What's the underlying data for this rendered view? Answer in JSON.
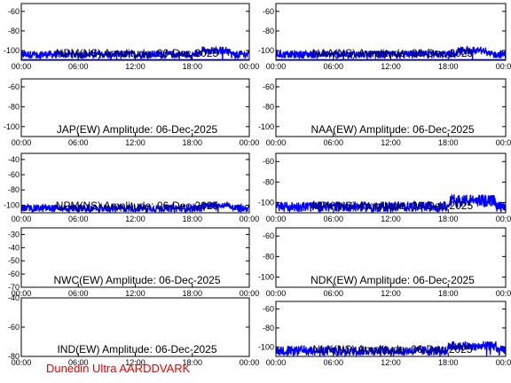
{
  "footer": "Dunedin Ultra AARDDVARK",
  "chart_data": [
    {
      "type": "line",
      "title": "NPM(NS) Amplitude: 06-Dec-2025",
      "ylim": [
        -110,
        -52
      ],
      "yticks": [
        -60,
        -80,
        -100
      ],
      "xticks": [
        "00:00",
        "06:00",
        "12:00",
        "18:00",
        "00:00"
      ],
      "x": [
        0,
        24
      ],
      "series": [
        {
          "name": "",
          "baseline": -104,
          "spread": 4,
          "spike": [
            19,
            22,
            -96
          ]
        }
      ],
      "color": "#0000ff"
    },
    {
      "type": "line",
      "title": "NAA(NS) Amplitude: 06-Dec-2025",
      "ylim": [
        -110,
        -52
      ],
      "yticks": [
        -60,
        -80,
        -100
      ],
      "xticks": [
        "00:00",
        "06:00",
        "12:00",
        "18:00",
        "00:00"
      ],
      "x": [
        0,
        24
      ],
      "series": [
        {
          "name": "",
          "baseline": -104,
          "spread": 4,
          "spike": [
            19,
            22,
            -96
          ]
        }
      ],
      "color": "#0000ff"
    },
    {
      "type": "line",
      "title": "JAP(EW) Amplitude: 06-Dec-2025",
      "ylim": [
        -110,
        -52
      ],
      "yticks": [
        -60,
        -80,
        -100
      ],
      "xticks": [
        "00:00",
        "06:00",
        "12:00",
        "18:00",
        "00:00"
      ],
      "x": [
        0,
        24
      ],
      "series": [],
      "color": "#0000ff"
    },
    {
      "type": "line",
      "title": "NAA(EW) Amplitude: 06-Dec-2025",
      "ylim": [
        -110,
        -52
      ],
      "yticks": [
        -60,
        -80,
        -100
      ],
      "xticks": [
        "00:00",
        "06:00",
        "12:00",
        "18:00",
        "00:00"
      ],
      "x": [
        0,
        24
      ],
      "series": [],
      "color": "#0000ff"
    },
    {
      "type": "line",
      "title": "NPM(NS) Amplitude: 06-Dec-2025",
      "ylim": [
        -110,
        -32
      ],
      "yticks": [
        -40,
        -60,
        -80,
        -100
      ],
      "xticks": [
        "00:00",
        "06:00",
        "12:00",
        "18:00",
        "00:00"
      ],
      "x": [
        0,
        24
      ],
      "series": [
        {
          "name": "",
          "baseline": -104,
          "spread": 5,
          "spike": [
            19,
            22,
            -96
          ]
        }
      ],
      "color": "#0000ff"
    },
    {
      "type": "line",
      "title": "NPK(NS) Amplitude: 06-Dec-2025",
      "ylim": [
        -110,
        -52
      ],
      "yticks": [
        -60,
        -80,
        -100
      ],
      "xticks": [
        "00:00",
        "06:00",
        "12:00",
        "18:00",
        "00:00"
      ],
      "x": [
        0,
        24
      ],
      "series": [
        {
          "name": "",
          "baseline": -104,
          "spread": 5,
          "spike": [
            18,
            23,
            -92
          ]
        }
      ],
      "color": "#0000ff"
    },
    {
      "type": "line",
      "title": "NWC(EW) Amplitude: 06-Dec-2025",
      "ylim": [
        -70,
        -25
      ],
      "yticks": [
        -30,
        -40,
        -50,
        -60,
        -70
      ],
      "xticks": [
        "00:00",
        "06:00",
        "12:00",
        "18:00",
        "00:00"
      ],
      "x": [
        0,
        24
      ],
      "series": [],
      "color": "#0000ff"
    },
    {
      "type": "line",
      "title": "NDK(EW) Amplitude: 06-Dec-2025",
      "ylim": [
        -110,
        -52
      ],
      "yticks": [
        -60,
        -80,
        -100
      ],
      "xticks": [
        "00:00",
        "06:00",
        "12:00",
        "18:00",
        "00:00"
      ],
      "x": [
        0,
        24
      ],
      "series": [],
      "color": "#0000ff"
    },
    {
      "type": "line",
      "title": "IND(EW) Amplitude: 06-Dec-2025",
      "ylim": [
        -80,
        -40
      ],
      "yticks": [
        -40,
        -60,
        -80
      ],
      "xticks": [
        "00:00",
        "06:00",
        "12:00",
        "18:00",
        "00:00"
      ],
      "x": [
        0,
        24
      ],
      "series": [],
      "color": "#0000ff"
    },
    {
      "type": "line",
      "title": "NLK(NS) Amplitude: 06-Dec-2025",
      "ylim": [
        -110,
        -52
      ],
      "yticks": [
        -60,
        -80,
        -100
      ],
      "xticks": [
        "00:00",
        "06:00",
        "12:00",
        "18:00",
        "00:00"
      ],
      "x": [
        0,
        24
      ],
      "series": [
        {
          "name": "",
          "baseline": -104,
          "spread": 5,
          "spike": [
            18,
            23,
            -94
          ]
        }
      ],
      "color": "#0000ff"
    }
  ]
}
